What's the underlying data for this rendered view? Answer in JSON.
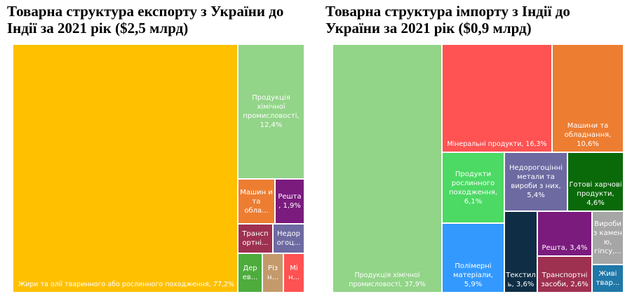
{
  "chart_data": [
    {
      "type": "treemap",
      "title": "Товарна структура експорту з України до Індії за 2021 рік ($2,5 млрд)",
      "items": [
        {
          "label": "Жири та олії тваринного або рослинного походження, 77,2%",
          "value": 77.2,
          "color": "#FFC000"
        },
        {
          "label": "Продукція хімічної промисловості, 12,4%",
          "value": 12.4,
          "color": "#92D488"
        },
        {
          "label": "Машин и та обла...",
          "value": 3.1,
          "color": "#ED7D31"
        },
        {
          "label": "Решта , 1,9%",
          "value": 1.9,
          "color": "#7B1B7E"
        },
        {
          "label": "Трансп ортні...",
          "value": 1.3,
          "color": "#9E3050"
        },
        {
          "label": "Недор огоц...",
          "value": 1.2,
          "color": "#6D6AA2"
        },
        {
          "label": "Дер ев...",
          "value": 1.0,
          "color": "#4DAC3C"
        },
        {
          "label": "Різ н...",
          "value": 0.9,
          "color": "#C49A6C"
        },
        {
          "label": "Мі н...",
          "value": 0.8,
          "color": "#FF5252"
        }
      ]
    },
    {
      "type": "treemap",
      "title": "Товарна структура імпорту з Індії до України за 2021 рік ($0,9 млрд)",
      "items": [
        {
          "label": "Продукція хімічної промисловості, 37,9%",
          "value": 37.9,
          "color": "#92D488"
        },
        {
          "label": "Мінеральні продукти, 16,3%",
          "value": 16.3,
          "color": "#FF5252"
        },
        {
          "label": "Машини та обладнання, 10,6%",
          "value": 10.6,
          "color": "#ED7D31"
        },
        {
          "label": "Продукти рослинного походження, 6,1%",
          "value": 6.1,
          "color": "#4CD964"
        },
        {
          "label": "Недорогоцінні метали та вироби з них, 5,4%",
          "value": 5.4,
          "color": "#6D6AA2"
        },
        {
          "label": "Готові харчові продукти, 4,6%",
          "value": 4.6,
          "color": "#0A6A0A"
        },
        {
          "label": "Полімерні матеріали, 5,9%",
          "value": 5.9,
          "color": "#3399FF"
        },
        {
          "label": "Текстил ь, 3,6%",
          "value": 3.6,
          "color": "#0F2D44"
        },
        {
          "label": "Решта, 3,4%",
          "value": 3.4,
          "color": "#7B1B7E"
        },
        {
          "label": "Транспортні засоби, 2,6%",
          "value": 2.6,
          "color": "#9E3050"
        },
        {
          "label": "Вироби з камен ю, гіпсу,...",
          "value": 2.4,
          "color": "#A6A6A6"
        },
        {
          "label": "Живі твар...",
          "value": 1.8,
          "color": "#1F78A8"
        }
      ]
    }
  ]
}
